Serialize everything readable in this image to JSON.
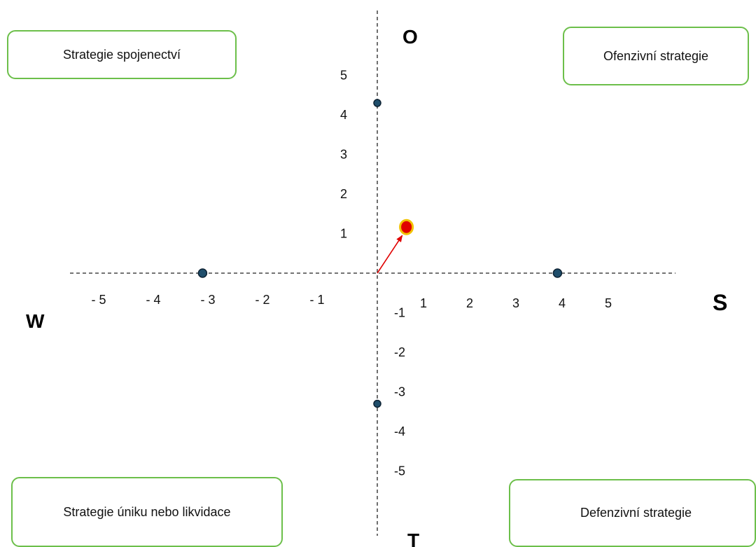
{
  "quadrant_boxes": {
    "top_left": "Strategie spojenectví",
    "top_right": "Ofenzivní strategie",
    "bottom_left": "Strategie úniku nebo likvidace",
    "bottom_right": "Defenzivní strategie"
  },
  "poles": {
    "top": "O",
    "right": "S",
    "left": "W",
    "bottom": "T"
  },
  "x_tick_labels": [
    {
      "v": -5,
      "t": "- 5"
    },
    {
      "v": -4,
      "t": "- 4"
    },
    {
      "v": -3,
      "t": "- 3"
    },
    {
      "v": -2,
      "t": "- 2"
    },
    {
      "v": -1,
      "t": "- 1"
    },
    {
      "v": 1,
      "t": "1"
    },
    {
      "v": 2,
      "t": "2"
    },
    {
      "v": 3,
      "t": "3"
    },
    {
      "v": 4,
      "t": "4"
    },
    {
      "v": 5,
      "t": "5"
    }
  ],
  "y_tick_labels": [
    {
      "v": 5,
      "t": "5"
    },
    {
      "v": 4,
      "t": "4"
    },
    {
      "v": 3,
      "t": "3"
    },
    {
      "v": 2,
      "t": "2"
    },
    {
      "v": 1,
      "t": "1"
    },
    {
      "v": -1,
      "t": "-1"
    },
    {
      "v": -2,
      "t": "-2"
    },
    {
      "v": -3,
      "t": "-3"
    },
    {
      "v": -4,
      "t": "-4"
    },
    {
      "v": -5,
      "t": "-5"
    }
  ],
  "axis_points": [
    {
      "name": "point-o",
      "x": 0,
      "y": 4.3
    },
    {
      "name": "point-w",
      "x": -3.2,
      "y": 0
    },
    {
      "name": "point-s",
      "x": 3.9,
      "y": 0
    },
    {
      "name": "point-t",
      "x": 0,
      "y": -3.3
    }
  ],
  "result_point": {
    "x": 0.6,
    "y": 1.2
  },
  "colors": {
    "box_border": "#6cbf4a",
    "axis_point": "#1f4e6b",
    "result_fill": "#e00000",
    "result_stroke": "#f2c200",
    "arrow": "#e00000"
  }
}
